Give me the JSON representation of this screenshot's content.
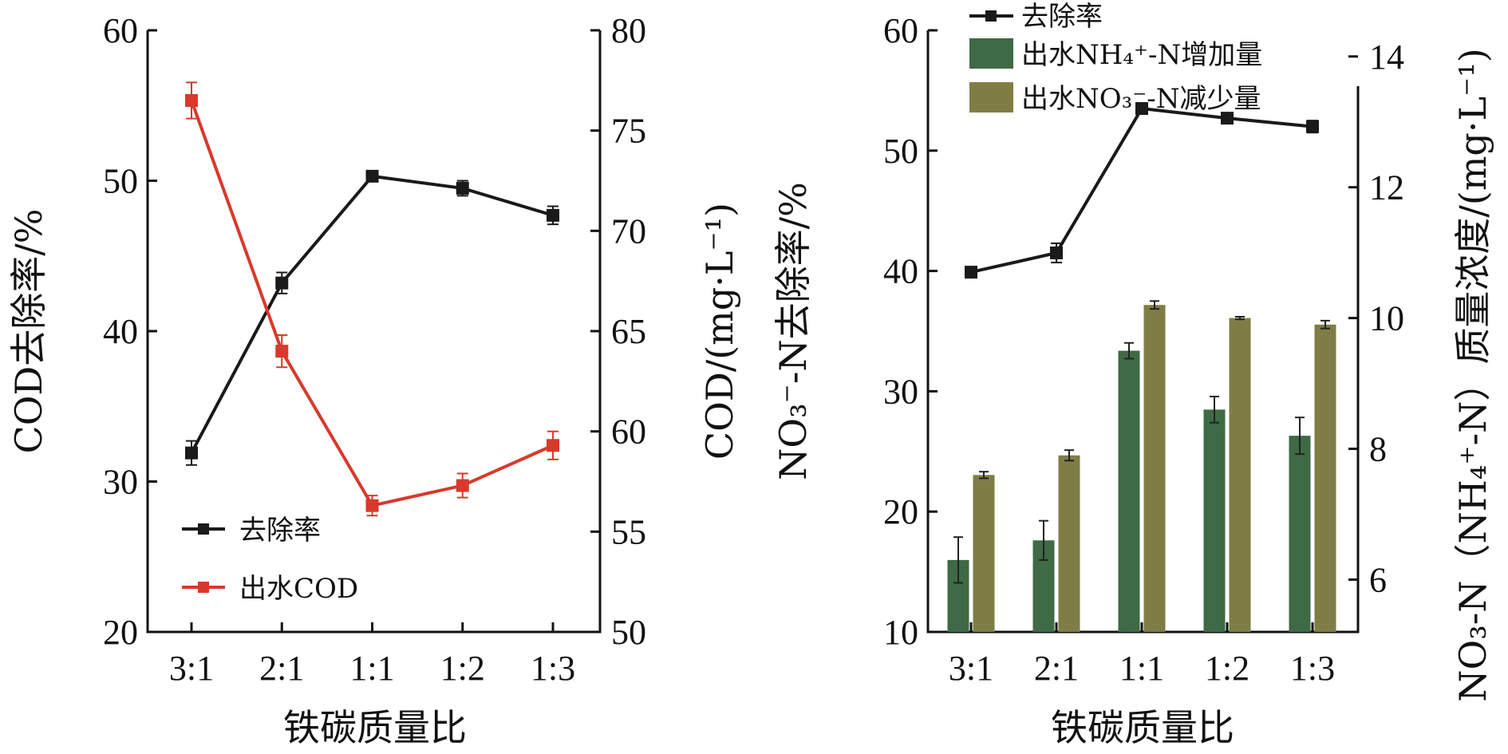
{
  "chart_data": [
    {
      "type": "line",
      "categories": [
        "3:1",
        "2:1",
        "1:1",
        "1:2",
        "1:3"
      ],
      "xlabel": "铁碳质量比",
      "ylabel_left": "COD去除率/%",
      "ylabel_right": "COD/(mg·L⁻¹)",
      "y_left": {
        "ylim": [
          20,
          60
        ],
        "ticks": [
          "20",
          "30",
          "40",
          "50",
          "60"
        ]
      },
      "y_right": {
        "ylim": [
          50,
          80
        ],
        "ticks": [
          "50",
          "55",
          "60",
          "65",
          "70",
          "75",
          "80"
        ]
      },
      "grid": false,
      "legend_position": "bottom-left",
      "series": [
        {
          "name": "去除率",
          "axis": "left",
          "color": "#1a1a1a",
          "values": [
            31.9,
            43.2,
            50.3,
            49.5,
            47.7
          ],
          "errors": [
            0.8,
            0.7,
            0.3,
            0.5,
            0.6
          ]
        },
        {
          "name": "出水COD",
          "axis": "right",
          "color": "#d8392b",
          "values": [
            76.5,
            64.0,
            56.3,
            57.3,
            59.3
          ],
          "errors": [
            0.9,
            0.8,
            0.5,
            0.6,
            0.7
          ]
        }
      ]
    },
    {
      "type": "bar",
      "categories": [
        "3:1",
        "2:1",
        "1:1",
        "1:2",
        "1:3"
      ],
      "xlabel": "铁碳质量比",
      "ylabel_left": "NO₃⁻-N去除率/%",
      "ylabel_right": "NO₃-N（NH₄⁺-N）质量浓度/(mg·L⁻¹)",
      "y_left": {
        "ylim": [
          10,
          60
        ],
        "ticks": [
          "10",
          "20",
          "30",
          "40",
          "50",
          "60"
        ]
      },
      "y_right": {
        "ylim": [
          5.2,
          14.4
        ],
        "ticks": [
          "6",
          "8",
          "10",
          "12",
          "14"
        ]
      },
      "grid": false,
      "legend_position": "top-left",
      "series": [
        {
          "name": "去除率",
          "kind": "line",
          "axis": "left",
          "color": "#1a1a1a",
          "values": [
            39.9,
            41.5,
            53.5,
            52.7,
            52.0
          ],
          "errors": [
            0.3,
            0.8,
            0.3,
            0.3,
            0.5
          ]
        },
        {
          "name": "出水NH₄⁺-N增加量",
          "kind": "bar",
          "axis": "right",
          "color": "#3e6a45",
          "values": [
            6.3,
            6.6,
            9.5,
            8.6,
            8.2
          ],
          "errors": [
            0.35,
            0.3,
            0.12,
            0.2,
            0.28
          ]
        },
        {
          "name": "出水NO₃⁻-N减少量",
          "kind": "bar",
          "axis": "right",
          "color": "#7f7d45",
          "values": [
            7.6,
            7.9,
            10.2,
            10.0,
            9.9
          ],
          "errors": [
            0.05,
            0.08,
            0.06,
            0.02,
            0.06
          ]
        }
      ]
    }
  ]
}
